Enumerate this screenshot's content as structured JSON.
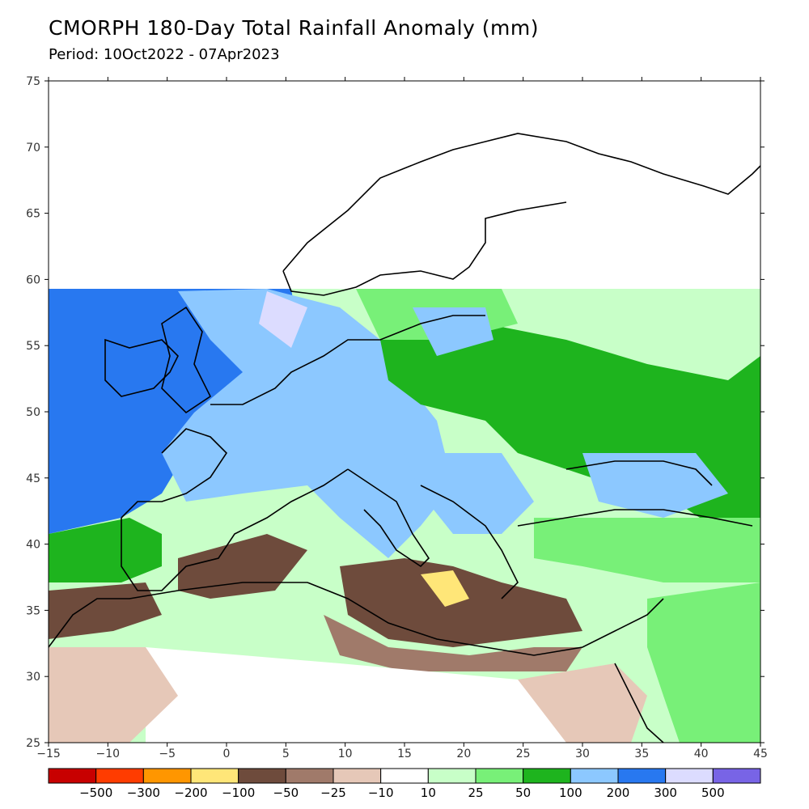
{
  "title": "CMORPH 180-Day Total Rainfall Anomaly (mm)",
  "period": "Period: 10Oct2022 - 07Apr2023",
  "map": {
    "lon_range": [
      -15,
      45
    ],
    "lat_range": [
      25,
      75
    ],
    "lon_ticks": [
      -15,
      -10,
      -5,
      0,
      5,
      10,
      15,
      20,
      25,
      30,
      35,
      40,
      45
    ],
    "lat_ticks": [
      25,
      30,
      35,
      40,
      45,
      50,
      55,
      60,
      65,
      70,
      75
    ],
    "data_north_limit": 59.3
  },
  "colorbar": {
    "colors": [
      "#c80000",
      "#ff3c00",
      "#ff9600",
      "#ffe678",
      "#6e4b3c",
      "#a07a6a",
      "#e6c8b8",
      "#ffffff",
      "#c8ffc8",
      "#78f078",
      "#1eb41e",
      "#8cc8ff",
      "#2878f0",
      "#dcdcff",
      "#7864e6"
    ],
    "labels": [
      "-500",
      "-300",
      "-200",
      "-100",
      "-50",
      "-25",
      "-10",
      "10",
      "25",
      "50",
      "100",
      "200",
      "300",
      "500"
    ]
  }
}
